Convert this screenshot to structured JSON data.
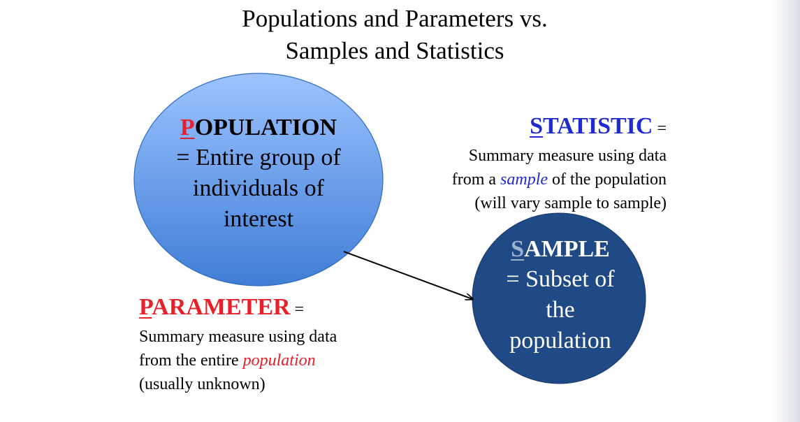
{
  "title": {
    "line1": "Populations and Parameters vs.",
    "line2": "Samples and Statistics"
  },
  "population": {
    "initial": "P",
    "rest": "OPULATION",
    "lines": [
      "= Entire group of",
      "individuals of",
      "interest"
    ],
    "fill_top": "#9cc3ff",
    "fill_bottom": "#3f7dd6"
  },
  "sample": {
    "initial": "S",
    "rest": "AMPLE",
    "lines": [
      "= Subset of",
      "the",
      "population"
    ],
    "fill": "#1f4a86"
  },
  "statistic": {
    "initial": "S",
    "rest": "TATISTIC",
    "equals": " =",
    "def_line1": "Summary measure using data",
    "def_line2_pre": "from a ",
    "def_line2_emph": "sample",
    "def_line2_post": " of the population",
    "def_line3": "(will vary sample to sample)",
    "color": "#1f2bd0"
  },
  "parameter": {
    "initial": "P",
    "rest": "ARAMETER",
    "equals": " =",
    "def_line1": "Summary measure using data",
    "def_line2_pre": "from the entire ",
    "def_line2_emph": "population",
    "def_line3": "(usually unknown)",
    "color": "#e8202a"
  },
  "arrow": {
    "from": "population",
    "to": "sample",
    "color": "#000000"
  }
}
